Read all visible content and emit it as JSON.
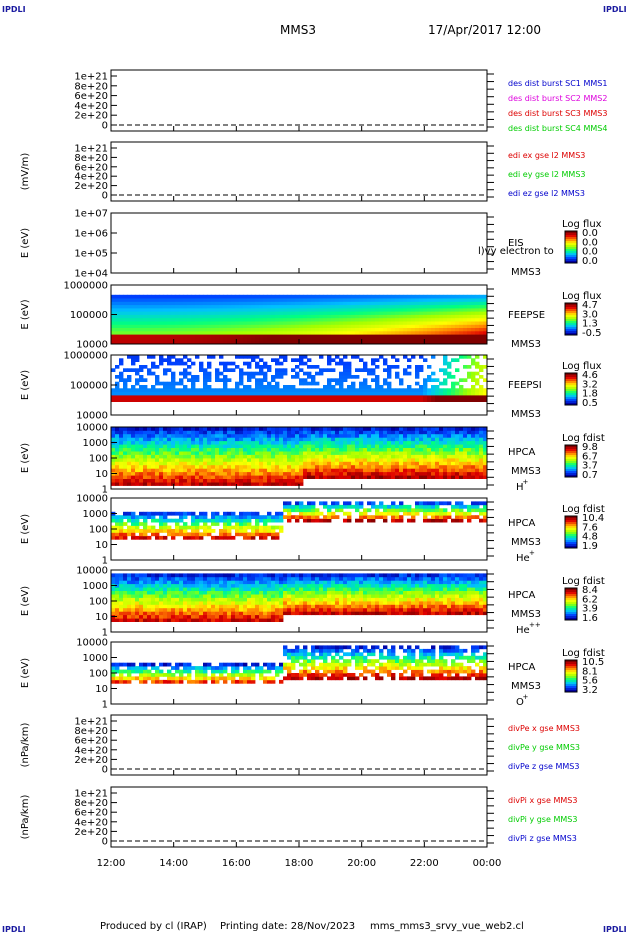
{
  "header": {
    "logo_left": "IPDLI",
    "logo_right": "IPDLI",
    "mission": "MMS3",
    "datetime": "17/Apr/2017 12:00"
  },
  "footer": {
    "credit": "Produced by cl (IRAP)",
    "printing": "Printing date: 28/Nov/2023",
    "file": "mms_mms3_srvy_vue_web2.cl"
  },
  "colors": {
    "red": "#dd0000",
    "magenta": "#dd00dd",
    "blue": "#0000cc",
    "green": "#00cc00"
  },
  "colorbar_stops": [
    "#0000a0",
    "#0040ff",
    "#00c0ff",
    "#00ff80",
    "#a0ff00",
    "#ffff00",
    "#ff8000",
    "#e00000",
    "#800000"
  ],
  "chart_data": [
    {
      "type": "line",
      "panel": "dist",
      "ylabel": "",
      "yticks": [
        "1e+21",
        "8e+20",
        "6e+20",
        "4e+20",
        "2e+20",
        "0"
      ],
      "flat_value": 0,
      "legend": [
        {
          "label": "des dist burst SC1 MMS1",
          "color": "blue"
        },
        {
          "label": "des dist burst SC2 MMS2",
          "color": "magenta"
        },
        {
          "label": "des dist burst SC3 MMS3",
          "color": "red"
        },
        {
          "label": "des dist burst SC4 MMS4",
          "color": "green"
        }
      ]
    },
    {
      "type": "line",
      "panel": "edi",
      "ylabel": "(mV/m)",
      "yticks": [
        "1e+21",
        "8e+20",
        "6e+20",
        "4e+20",
        "2e+20",
        "0"
      ],
      "flat_value": 0,
      "legend": [
        {
          "label": "edi ex gse l2 MMS3",
          "color": "red"
        },
        {
          "label": "edi ey gse l2 MMS3",
          "color": "green"
        },
        {
          "label": "edi ez gse l2 MMS3",
          "color": "blue"
        }
      ]
    },
    {
      "type": "heatmap",
      "panel": "eis",
      "ylabel": "E (eV)",
      "yticks": [
        "1e+07",
        "1e+06",
        "1e+05",
        "1e+04"
      ],
      "yscale": "log",
      "ylim": [
        10000,
        10000000
      ],
      "instrument": [
        "EIS",
        "MMS3"
      ],
      "overlay": "l)vy electron to",
      "cbar_title": "Log flux",
      "cbar_ticks": [
        "0.0",
        "0.0",
        "0.0",
        "0.0"
      ],
      "data": "none"
    },
    {
      "type": "heatmap",
      "panel": "feeps_e",
      "ylabel": "E (eV)",
      "yticks": [
        "1000000",
        "100000",
        "10000"
      ],
      "yscale": "log",
      "ylim": [
        10000,
        1000000
      ],
      "instrument": [
        "FEEPSE",
        "MMS3"
      ],
      "cbar_title": "Log flux",
      "cbar_ticks": [
        "4.7",
        "3.0",
        "1.3",
        "-0.5"
      ]
    },
    {
      "type": "heatmap",
      "panel": "feeps_i",
      "ylabel": "E (eV)",
      "yticks": [
        "1000000",
        "100000",
        "10000"
      ],
      "yscale": "log",
      "ylim": [
        10000,
        1000000
      ],
      "instrument": [
        "FEEPSI",
        "MMS3"
      ],
      "cbar_title": "Log flux",
      "cbar_ticks": [
        "4.6",
        "3.2",
        "1.8",
        "0.5"
      ]
    },
    {
      "type": "heatmap",
      "panel": "hpca_h",
      "ylabel": "E (eV)",
      "yticks": [
        "10000",
        "1000",
        "100",
        "10",
        "1"
      ],
      "yscale": "log",
      "ylim": [
        1,
        40000
      ],
      "instrument": [
        "HPCA",
        "MMS3"
      ],
      "species": "H",
      "charge": "+",
      "cbar_title": "Log fdist",
      "cbar_ticks": [
        "9.8",
        "6.7",
        "3.7",
        "0.7"
      ]
    },
    {
      "type": "heatmap",
      "panel": "hpca_he",
      "ylabel": "E (eV)",
      "yticks": [
        "10000",
        "1000",
        "100",
        "10",
        "1"
      ],
      "yscale": "log",
      "ylim": [
        1,
        40000
      ],
      "instrument": [
        "HPCA",
        "MMS3"
      ],
      "species": "He",
      "charge": "+",
      "cbar_title": "Log fdist",
      "cbar_ticks": [
        "10.4",
        "7.6",
        "4.8",
        "1.9"
      ]
    },
    {
      "type": "heatmap",
      "panel": "hpca_hepp",
      "ylabel": "E (eV)",
      "yticks": [
        "10000",
        "1000",
        "100",
        "10",
        "1"
      ],
      "yscale": "log",
      "ylim": [
        1,
        40000
      ],
      "instrument": [
        "HPCA",
        "MMS3"
      ],
      "species": "He",
      "charge": "++",
      "cbar_title": "Log fdist",
      "cbar_ticks": [
        "8.4",
        "6.2",
        "3.9",
        "1.6"
      ]
    },
    {
      "type": "heatmap",
      "panel": "hpca_o",
      "ylabel": "E (eV)",
      "yticks": [
        "10000",
        "1000",
        "100",
        "10",
        "1"
      ],
      "yscale": "log",
      "ylim": [
        1,
        40000
      ],
      "instrument": [
        "HPCA",
        "MMS3"
      ],
      "species": "O",
      "charge": "+",
      "cbar_title": "Log fdist",
      "cbar_ticks": [
        "10.5",
        "8.1",
        "5.6",
        "3.2"
      ]
    },
    {
      "type": "line",
      "panel": "divpe",
      "ylabel": "(nPa/km)",
      "yticks": [
        "1e+21",
        "8e+20",
        "6e+20",
        "4e+20",
        "2e+20",
        "0"
      ],
      "flat_value": 0,
      "legend": [
        {
          "label": "divPe x gse MMS3",
          "color": "red"
        },
        {
          "label": "divPe y gse MMS3",
          "color": "green"
        },
        {
          "label": "divPe z gse MMS3",
          "color": "blue"
        }
      ]
    },
    {
      "type": "line",
      "panel": "divpi",
      "ylabel": "(nPa/km)",
      "yticks": [
        "1e+21",
        "8e+20",
        "6e+20",
        "4e+20",
        "2e+20",
        "0"
      ],
      "flat_value": 0,
      "legend": [
        {
          "label": "divPi x gse MMS3",
          "color": "red"
        },
        {
          "label": "divPi y gse MMS3",
          "color": "green"
        },
        {
          "label": "divPi z gse MMS3",
          "color": "blue"
        }
      ]
    }
  ],
  "xaxis": {
    "ticks": [
      "12:00",
      "14:00",
      "16:00",
      "18:00",
      "20:00",
      "22:00",
      "00:00"
    ],
    "range": [
      "12:00",
      "00:00"
    ]
  }
}
